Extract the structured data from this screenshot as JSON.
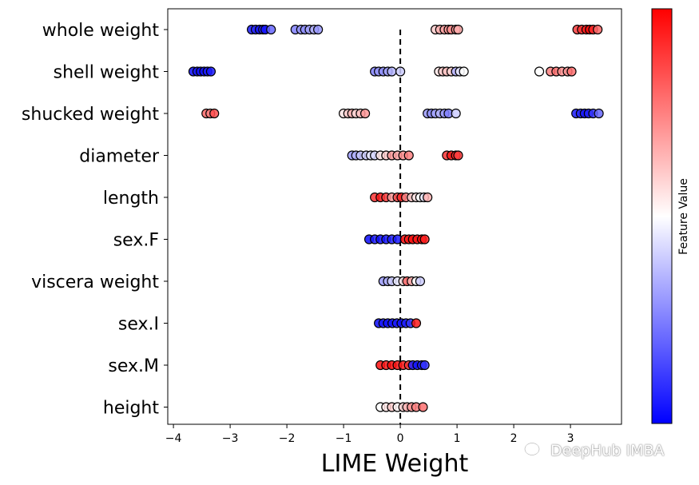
{
  "chart_data": {
    "type": "scatter",
    "xlabel": "LIME Weight",
    "ylabel": "",
    "xlim": [
      -4.1,
      3.9
    ],
    "x_ticks": [
      -4,
      -3,
      -2,
      -1,
      0,
      1,
      2,
      3
    ],
    "x_tick_labels": [
      "−4",
      "−3",
      "−2",
      "−1",
      "0",
      "1",
      "2",
      "3"
    ],
    "reference_line": {
      "x": 0,
      "style": "dashed"
    },
    "colorbar": {
      "label": "Feature Value",
      "colormap": "bwr",
      "low_color": "#0000ff",
      "mid_color": "#ffffff",
      "high_color": "#ff0000"
    },
    "features": [
      {
        "name": "whole weight",
        "points": [
          [
            -2.62,
            0.05
          ],
          [
            -2.55,
            0.08
          ],
          [
            -2.48,
            0.04
          ],
          [
            -2.42,
            0.1
          ],
          [
            -2.38,
            0.03
          ],
          [
            -2.28,
            0.2
          ],
          [
            -1.85,
            0.25
          ],
          [
            -1.75,
            0.3
          ],
          [
            -1.68,
            0.28
          ],
          [
            -1.6,
            0.32
          ],
          [
            -1.52,
            0.35
          ],
          [
            -1.45,
            0.3
          ],
          [
            0.62,
            0.6
          ],
          [
            0.7,
            0.65
          ],
          [
            0.78,
            0.68
          ],
          [
            0.85,
            0.7
          ],
          [
            0.9,
            0.72
          ],
          [
            0.98,
            0.7
          ],
          [
            1.02,
            0.66
          ],
          [
            3.12,
            0.88
          ],
          [
            3.2,
            0.9
          ],
          [
            3.28,
            0.95
          ],
          [
            3.34,
            0.98
          ],
          [
            3.4,
            0.92
          ],
          [
            3.48,
            0.8
          ]
        ]
      },
      {
        "name": "shell weight",
        "points": [
          [
            -3.65,
            0.02
          ],
          [
            -3.58,
            0.05
          ],
          [
            -3.52,
            0.03
          ],
          [
            -3.46,
            0.04
          ],
          [
            -3.4,
            0.06
          ],
          [
            -3.34,
            0.05
          ],
          [
            -0.45,
            0.25
          ],
          [
            -0.38,
            0.3
          ],
          [
            -0.3,
            0.28
          ],
          [
            -0.22,
            0.32
          ],
          [
            -0.15,
            0.35
          ],
          [
            0.0,
            0.4
          ],
          [
            0.68,
            0.55
          ],
          [
            0.75,
            0.6
          ],
          [
            0.82,
            0.62
          ],
          [
            0.9,
            0.58
          ],
          [
            0.98,
            0.35
          ],
          [
            1.05,
            0.45
          ],
          [
            1.12,
            0.5
          ],
          [
            2.45,
            0.5
          ],
          [
            2.65,
            0.75
          ],
          [
            2.75,
            0.78
          ],
          [
            2.85,
            0.72
          ],
          [
            2.95,
            0.7
          ],
          [
            3.02,
            0.78
          ]
        ]
      },
      {
        "name": "shucked weight",
        "points": [
          [
            -3.42,
            0.8
          ],
          [
            -3.35,
            0.75
          ],
          [
            -3.28,
            0.85
          ],
          [
            -1.0,
            0.55
          ],
          [
            -0.92,
            0.6
          ],
          [
            -0.85,
            0.65
          ],
          [
            -0.78,
            0.58
          ],
          [
            -0.7,
            0.62
          ],
          [
            -0.62,
            0.7
          ],
          [
            0.48,
            0.3
          ],
          [
            0.55,
            0.28
          ],
          [
            0.62,
            0.32
          ],
          [
            0.7,
            0.35
          ],
          [
            0.78,
            0.3
          ],
          [
            0.85,
            0.25
          ],
          [
            0.98,
            0.4
          ],
          [
            3.1,
            0.05
          ],
          [
            3.18,
            0.08
          ],
          [
            3.25,
            0.04
          ],
          [
            3.32,
            0.06
          ],
          [
            3.4,
            0.1
          ],
          [
            3.5,
            0.2
          ]
        ]
      },
      {
        "name": "diameter",
        "points": [
          [
            -0.85,
            0.3
          ],
          [
            -0.78,
            0.35
          ],
          [
            -0.7,
            0.38
          ],
          [
            -0.6,
            0.4
          ],
          [
            -0.52,
            0.45
          ],
          [
            -0.45,
            0.42
          ],
          [
            -0.35,
            0.55
          ],
          [
            -0.25,
            0.6
          ],
          [
            -0.15,
            0.7
          ],
          [
            -0.05,
            0.68
          ],
          [
            0.05,
            0.72
          ],
          [
            0.15,
            0.75
          ],
          [
            0.82,
            0.9
          ],
          [
            0.9,
            0.95
          ],
          [
            0.98,
            0.92
          ],
          [
            1.02,
            0.88
          ]
        ]
      },
      {
        "name": "length",
        "points": [
          [
            -0.45,
            0.9
          ],
          [
            -0.35,
            0.95
          ],
          [
            -0.25,
            0.88
          ],
          [
            -0.15,
            0.7
          ],
          [
            -0.05,
            0.85
          ],
          [
            0.02,
            0.92
          ],
          [
            0.1,
            0.75
          ],
          [
            0.2,
            0.6
          ],
          [
            0.28,
            0.55
          ],
          [
            0.35,
            0.5
          ],
          [
            0.42,
            0.45
          ],
          [
            0.48,
            0.65
          ]
        ]
      },
      {
        "name": "sex.F",
        "points": [
          [
            -0.55,
            0.02
          ],
          [
            -0.45,
            0.05
          ],
          [
            -0.35,
            0.03
          ],
          [
            -0.25,
            0.04
          ],
          [
            -0.15,
            0.06
          ],
          [
            -0.05,
            0.05
          ],
          [
            0.08,
            0.98
          ],
          [
            0.15,
            0.95
          ],
          [
            0.22,
            0.97
          ],
          [
            0.3,
            0.96
          ],
          [
            0.38,
            0.98
          ],
          [
            0.43,
            0.94
          ]
        ]
      },
      {
        "name": "viscera weight",
        "points": [
          [
            -0.3,
            0.3
          ],
          [
            -0.22,
            0.35
          ],
          [
            -0.15,
            0.4
          ],
          [
            -0.05,
            0.45
          ],
          [
            0.05,
            0.55
          ],
          [
            0.12,
            0.8
          ],
          [
            0.2,
            0.65
          ],
          [
            0.28,
            0.5
          ],
          [
            0.35,
            0.4
          ]
        ]
      },
      {
        "name": "sex.I",
        "points": [
          [
            -0.38,
            0.02
          ],
          [
            -0.3,
            0.05
          ],
          [
            -0.22,
            0.03
          ],
          [
            -0.14,
            0.04
          ],
          [
            -0.06,
            0.05
          ],
          [
            0.02,
            0.03
          ],
          [
            0.1,
            0.06
          ],
          [
            0.18,
            0.1
          ],
          [
            0.28,
            0.95
          ]
        ]
      },
      {
        "name": "sex.M",
        "points": [
          [
            -0.35,
            0.97
          ],
          [
            -0.25,
            0.95
          ],
          [
            -0.15,
            0.98
          ],
          [
            -0.05,
            0.96
          ],
          [
            0.05,
            0.95
          ],
          [
            0.15,
            0.9
          ],
          [
            0.22,
            0.06
          ],
          [
            0.3,
            0.04
          ],
          [
            0.38,
            0.05
          ],
          [
            0.43,
            0.1
          ]
        ]
      },
      {
        "name": "height",
        "points": [
          [
            -0.35,
            0.5
          ],
          [
            -0.25,
            0.55
          ],
          [
            -0.15,
            0.6
          ],
          [
            -0.05,
            0.52
          ],
          [
            0.05,
            0.58
          ],
          [
            0.12,
            0.65
          ],
          [
            0.2,
            0.7
          ],
          [
            0.28,
            0.75
          ],
          [
            0.4,
            0.78
          ]
        ]
      }
    ]
  },
  "watermark": {
    "text": "DeepHub IMBA"
  }
}
